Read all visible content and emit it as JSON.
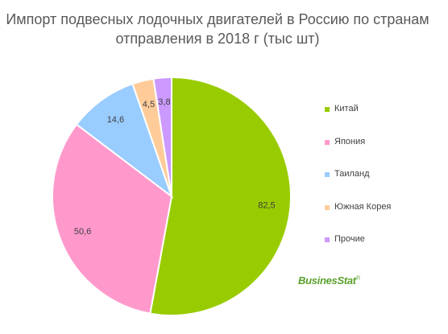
{
  "chart_data": {
    "type": "pie",
    "title_lines": [
      "Импорт подвесных лодочных двигателей в Россию по странам",
      "отправления в 2018 г (тыс шт)"
    ],
    "categories": [
      "Китай",
      "Япония",
      "Таиланд",
      "Южная Корея",
      "Прочие"
    ],
    "values": [
      82.5,
      50.6,
      14.6,
      4.5,
      3.8
    ],
    "value_labels": [
      "82,5",
      "50,6",
      "14,6",
      "4,5",
      "3,8"
    ],
    "colors": [
      "#99cc00",
      "#ff99cc",
      "#99ccff",
      "#ffcc99",
      "#cc99ff"
    ],
    "start_angle_deg": 0,
    "direction": "clockwise",
    "legend_position": "right"
  },
  "logo": {
    "text": "BusinesStat",
    "mark": "®"
  }
}
